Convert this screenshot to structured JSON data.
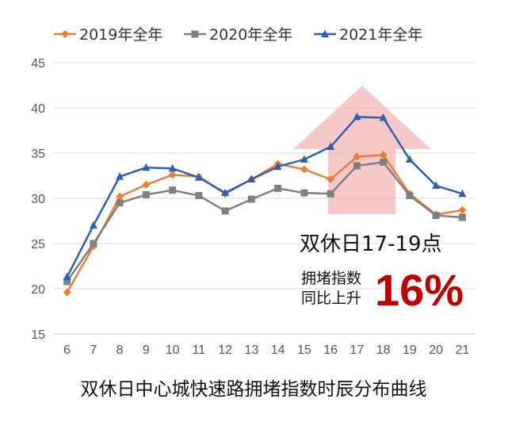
{
  "chart_data": {
    "type": "line",
    "title": "",
    "caption": "双休日中心城快速路拥堵指数时辰分布曲线",
    "xlabel": "",
    "ylabel": "",
    "categories": [
      "6",
      "7",
      "8",
      "9",
      "10",
      "11",
      "12",
      "13",
      "14",
      "15",
      "16",
      "17",
      "18",
      "19",
      "20",
      "21"
    ],
    "ylim": [
      15,
      45
    ],
    "yticks": [
      "15",
      "20",
      "25",
      "30",
      "35",
      "40",
      "45"
    ],
    "grid": "horizontal",
    "legend_position": "top",
    "series": [
      {
        "name": "2019年全年",
        "color": "#ed7d31",
        "marker": "diamond",
        "values": [
          19.6,
          24.7,
          30.2,
          31.5,
          32.6,
          32.4,
          30.5,
          32.1,
          33.8,
          33.2,
          32.1,
          34.6,
          34.8,
          30.5,
          28.2,
          28.7
        ]
      },
      {
        "name": "2020年全年",
        "color": "#808080",
        "marker": "square",
        "values": [
          20.8,
          25.0,
          29.5,
          30.4,
          30.9,
          30.3,
          28.6,
          29.9,
          31.1,
          30.6,
          30.5,
          33.6,
          34.0,
          30.3,
          28.1,
          27.9
        ]
      },
      {
        "name": "2021年全年",
        "color": "#2e5fb0",
        "marker": "triangle",
        "values": [
          21.3,
          27.0,
          32.4,
          33.4,
          33.3,
          32.3,
          30.6,
          32.1,
          33.5,
          34.3,
          35.7,
          39.0,
          38.9,
          34.3,
          31.4,
          30.5
        ]
      }
    ],
    "annotations": {
      "window_label": "双休日17-19点",
      "line1": "拥堵指数",
      "line2": "同比上升",
      "percent": "16%",
      "arrow_color": "#f4b6b6",
      "percent_color": "#c00000"
    }
  }
}
